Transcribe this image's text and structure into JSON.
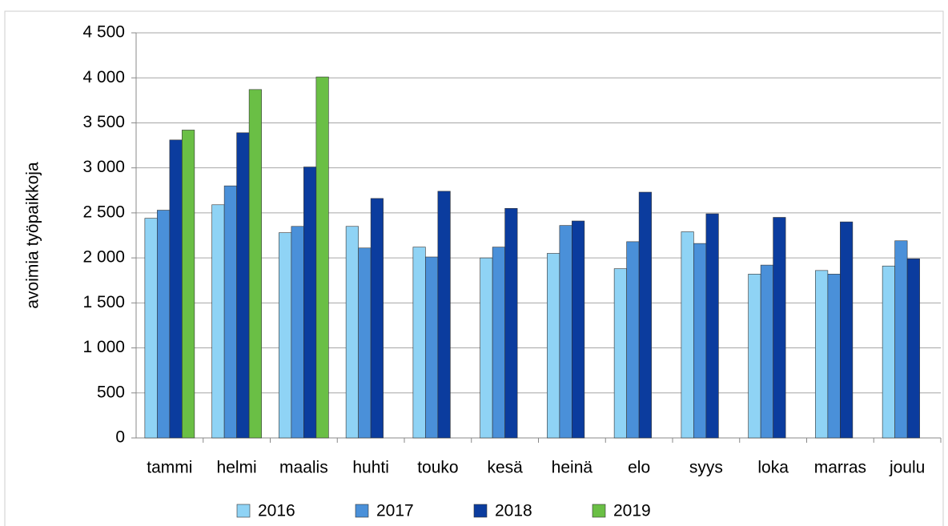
{
  "chart_data": {
    "type": "bar",
    "y_label": "avoimia työpaikkoja",
    "categories": [
      "tammi",
      "helmi",
      "maalis",
      "huhti",
      "touko",
      "kesä",
      "heinä",
      "elo",
      "syys",
      "loka",
      "marras",
      "joulu"
    ],
    "series": [
      {
        "name": "2016",
        "color": "#8fd3f5",
        "values": [
          2440,
          2590,
          2280,
          2350,
          2120,
          2000,
          2050,
          1880,
          2290,
          1820,
          1860,
          1910
        ]
      },
      {
        "name": "2017",
        "color": "#4a90d9",
        "values": [
          2530,
          2800,
          2350,
          2110,
          2010,
          2120,
          2360,
          2180,
          2160,
          1920,
          1820,
          2190
        ]
      },
      {
        "name": "2018",
        "color": "#0b3c9e",
        "values": [
          3310,
          3390,
          3010,
          2660,
          2740,
          2550,
          2410,
          2730,
          2490,
          2450,
          2400,
          1990
        ]
      },
      {
        "name": "2019",
        "color": "#6abf45",
        "values": [
          3420,
          3870,
          4010,
          null,
          null,
          null,
          null,
          null,
          null,
          null,
          null,
          null
        ]
      }
    ],
    "ylim": [
      0,
      4500
    ],
    "yticks": [
      0,
      {
        "value": 500,
        "label": "500"
      },
      {
        "value": 1000,
        "label": "1 000"
      },
      {
        "value": 1500,
        "label": "1 500"
      },
      {
        "value": 2000,
        "label": "2 000"
      },
      {
        "value": 2500,
        "label": "2 500"
      },
      {
        "value": 3000,
        "label": "3 000"
      },
      {
        "value": 3500,
        "label": "3 500"
      },
      {
        "value": 4000,
        "label": "4 000"
      },
      {
        "value": 4500,
        "label": "4 500"
      }
    ],
    "grid": true,
    "legend": "bottom"
  }
}
